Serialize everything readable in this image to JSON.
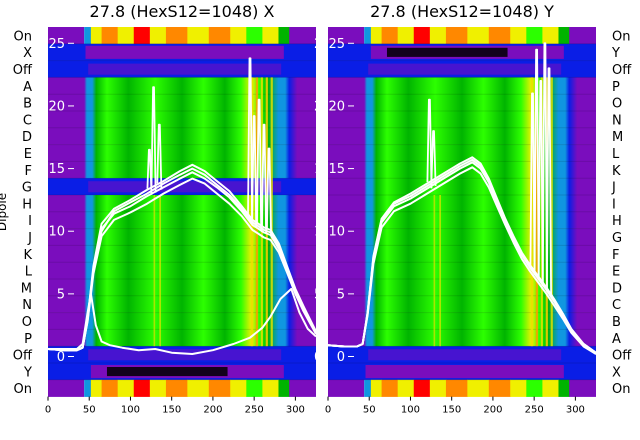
{
  "colors": {
    "colormap": [
      "#000000",
      "#7a0dbd",
      "#0a1ee6",
      "#1096e0",
      "#00b400",
      "#2cff00",
      "#f0f000",
      "#ff8800",
      "#ff0000"
    ],
    "line": "#ffffff"
  },
  "chart_data": [
    {
      "type": "heatmap",
      "title": "27.8 (HexS12=1048) X",
      "ylabel": "Dipole",
      "xlim": [
        0,
        325
      ],
      "xticks": [
        0,
        50,
        100,
        150,
        200,
        250,
        300
      ],
      "rows": [
        "On",
        "X",
        "Off",
        "A",
        "B",
        "C",
        "D",
        "E",
        "F",
        "G",
        "H",
        "I",
        "J",
        "K",
        "L",
        "M",
        "N",
        "O",
        "P",
        "Off",
        "Y",
        "On"
      ],
      "overlay_yticks": [
        0,
        5,
        10,
        15,
        20,
        25
      ],
      "overlay_ylim": [
        -3.2,
        26.3
      ],
      "series": [
        {
          "x": [
            0,
            20,
            35,
            42,
            48,
            55,
            65,
            80,
            100,
            120,
            140,
            160,
            175,
            190,
            205,
            220,
            235,
            242,
            248,
            255,
            262,
            270,
            280,
            290,
            300,
            310,
            325
          ],
          "y": [
            0.6,
            0.5,
            0.5,
            0.7,
            3.0,
            7.2,
            10.6,
            11.8,
            12.5,
            13.3,
            14.0,
            14.8,
            15.3,
            14.8,
            14.0,
            13.2,
            12.0,
            11.4,
            10.9,
            10.6,
            10.3,
            10.1,
            9.0,
            7.2,
            5.4,
            4.0,
            2.0
          ]
        },
        {
          "x": [
            0,
            20,
            35,
            42,
            48,
            55,
            65,
            80,
            100,
            120,
            140,
            160,
            175,
            190,
            205,
            220,
            235,
            242,
            248,
            255,
            262,
            270,
            280,
            290,
            300,
            310,
            325
          ],
          "y": [
            0.6,
            0.5,
            0.5,
            0.7,
            3.0,
            7.0,
            10.2,
            11.4,
            12.0,
            12.8,
            13.5,
            14.2,
            14.7,
            14.2,
            13.5,
            12.7,
            11.6,
            11.0,
            10.5,
            10.2,
            9.9,
            9.7,
            8.6,
            7.0,
            5.2,
            3.8,
            1.9
          ]
        },
        {
          "x": [
            0,
            20,
            35,
            42,
            48,
            55,
            65,
            80,
            100,
            120,
            140,
            160,
            175,
            190,
            205,
            220,
            235,
            242,
            248,
            255,
            262,
            270,
            280,
            290,
            300,
            310,
            325
          ],
          "y": [
            0.6,
            0.5,
            0.5,
            0.7,
            2.8,
            6.6,
            9.6,
            10.9,
            11.5,
            12.2,
            13.0,
            13.7,
            14.2,
            13.8,
            13.0,
            12.2,
            11.2,
            10.6,
            10.1,
            9.8,
            9.5,
            9.3,
            8.3,
            6.7,
            5.0,
            3.6,
            1.8
          ]
        },
        {
          "x": [
            0,
            20,
            35,
            42,
            48,
            55,
            65,
            80,
            100,
            120,
            140,
            160,
            175,
            190,
            205,
            220,
            235,
            242,
            248,
            255,
            262,
            270,
            280,
            290,
            300,
            310,
            325
          ],
          "y": [
            0.6,
            0.5,
            0.5,
            0.7,
            2.9,
            6.9,
            10.0,
            11.6,
            12.3,
            13.0,
            13.8,
            14.5,
            15.0,
            14.5,
            13.7,
            12.9,
            11.8,
            11.2,
            10.7,
            10.4,
            10.1,
            9.9,
            8.8,
            7.1,
            5.3,
            3.9,
            2.0
          ]
        },
        {
          "x": [
            0,
            20,
            35,
            42,
            48,
            52,
            58,
            65,
            75,
            90,
            110,
            130,
            150,
            175,
            200,
            225,
            245,
            260,
            270,
            282,
            295,
            305,
            315,
            325
          ],
          "y": [
            0.6,
            0.6,
            0.6,
            1.0,
            3.5,
            5.0,
            2.5,
            1.2,
            0.9,
            0.7,
            0.5,
            0.6,
            0.3,
            0.2,
            0.5,
            1.0,
            1.5,
            2.3,
            3.2,
            4.6,
            5.4,
            3.5,
            2.2,
            1.6
          ]
        }
      ],
      "spikes": [
        {
          "x": 123,
          "peak": 16.5
        },
        {
          "x": 128,
          "peak": 21.5
        },
        {
          "x": 135,
          "peak": 18.5
        },
        {
          "x": 245,
          "peak": 23.8
        },
        {
          "x": 250,
          "peak": 19.2
        },
        {
          "x": 256,
          "peak": 20.5
        },
        {
          "x": 262,
          "peak": 18.5
        },
        {
          "x": 268,
          "peak": 16.6
        }
      ]
    },
    {
      "type": "heatmap",
      "title": "27.8 (HexS12=1048) Y",
      "ylabel": "",
      "xlim": [
        0,
        325
      ],
      "xticks": [
        0,
        50,
        100,
        150,
        200,
        250,
        300
      ],
      "rows": [
        "On",
        "X",
        "Off",
        "A",
        "B",
        "C",
        "D",
        "E",
        "F",
        "G",
        "H",
        "I",
        "J",
        "K",
        "L",
        "M",
        "N",
        "O",
        "P",
        "Off",
        "Y",
        "On"
      ],
      "row_labels_right": [
        "On",
        "Y",
        "Off",
        "P",
        "O",
        "N",
        "M",
        "L",
        "K",
        "J",
        "I",
        "H",
        "G",
        "F",
        "E",
        "D",
        "C",
        "B",
        "A",
        "Off",
        "X",
        "On"
      ],
      "overlay_yticks": [
        0,
        5,
        10,
        15,
        20,
        25
      ],
      "overlay_ylim": [
        -3.2,
        26.3
      ],
      "series": [
        {
          "x": [
            0,
            20,
            35,
            42,
            48,
            55,
            65,
            80,
            100,
            120,
            140,
            160,
            175,
            185,
            195,
            205,
            215,
            225,
            235,
            245,
            255,
            265,
            275,
            285,
            295,
            310,
            325
          ],
          "y": [
            0.9,
            0.8,
            0.8,
            1.0,
            3.5,
            8.0,
            11.0,
            12.3,
            13.0,
            13.8,
            14.6,
            15.4,
            15.9,
            15.4,
            14.2,
            12.6,
            11.0,
            9.6,
            8.3,
            7.3,
            6.4,
            5.5,
            4.5,
            3.4,
            2.2,
            1.0,
            0.3
          ]
        },
        {
          "x": [
            0,
            20,
            35,
            42,
            48,
            55,
            65,
            80,
            100,
            120,
            140,
            160,
            175,
            185,
            195,
            205,
            215,
            225,
            235,
            245,
            255,
            265,
            275,
            285,
            295,
            310,
            325
          ],
          "y": [
            0.9,
            0.8,
            0.8,
            1.0,
            3.4,
            7.7,
            10.7,
            12.0,
            12.6,
            13.4,
            14.2,
            15.0,
            15.5,
            15.0,
            13.9,
            12.3,
            10.8,
            9.4,
            8.1,
            7.1,
            6.2,
            5.3,
            4.3,
            3.2,
            2.0,
            0.9,
            0.2
          ]
        },
        {
          "x": [
            0,
            20,
            35,
            42,
            48,
            55,
            65,
            80,
            100,
            120,
            140,
            160,
            175,
            185,
            195,
            205,
            215,
            225,
            235,
            245,
            255,
            265,
            275,
            285,
            295,
            310,
            325
          ],
          "y": [
            0.9,
            0.8,
            0.8,
            1.0,
            3.3,
            7.4,
            10.3,
            11.6,
            12.2,
            13.0,
            13.8,
            14.6,
            15.1,
            14.6,
            13.5,
            12.0,
            10.5,
            9.1,
            7.8,
            6.8,
            5.9,
            5.0,
            4.0,
            3.0,
            1.9,
            0.8,
            0.2
          ]
        },
        {
          "x": [
            0,
            20,
            35,
            42,
            48,
            55,
            65,
            80,
            100,
            120,
            140,
            160,
            175,
            185,
            195,
            205,
            215,
            225,
            235,
            245,
            255,
            265,
            275,
            285,
            295,
            310,
            325
          ],
          "y": [
            0.9,
            0.8,
            0.8,
            1.0,
            3.5,
            7.9,
            10.9,
            12.2,
            12.8,
            13.6,
            14.4,
            15.2,
            15.7,
            15.2,
            14.0,
            12.4,
            10.9,
            9.5,
            8.2,
            7.2,
            6.3,
            5.4,
            4.4,
            3.3,
            2.1,
            1.0,
            0.3
          ]
        }
      ],
      "spikes": [
        {
          "x": 123,
          "peak": 20.5
        },
        {
          "x": 128,
          "peak": 18.0
        },
        {
          "x": 248,
          "peak": 21.0
        },
        {
          "x": 253,
          "peak": 24.5
        },
        {
          "x": 258,
          "peak": 22.0
        },
        {
          "x": 263,
          "peak": 25.0
        },
        {
          "x": 268,
          "peak": 23.0
        }
      ]
    }
  ]
}
